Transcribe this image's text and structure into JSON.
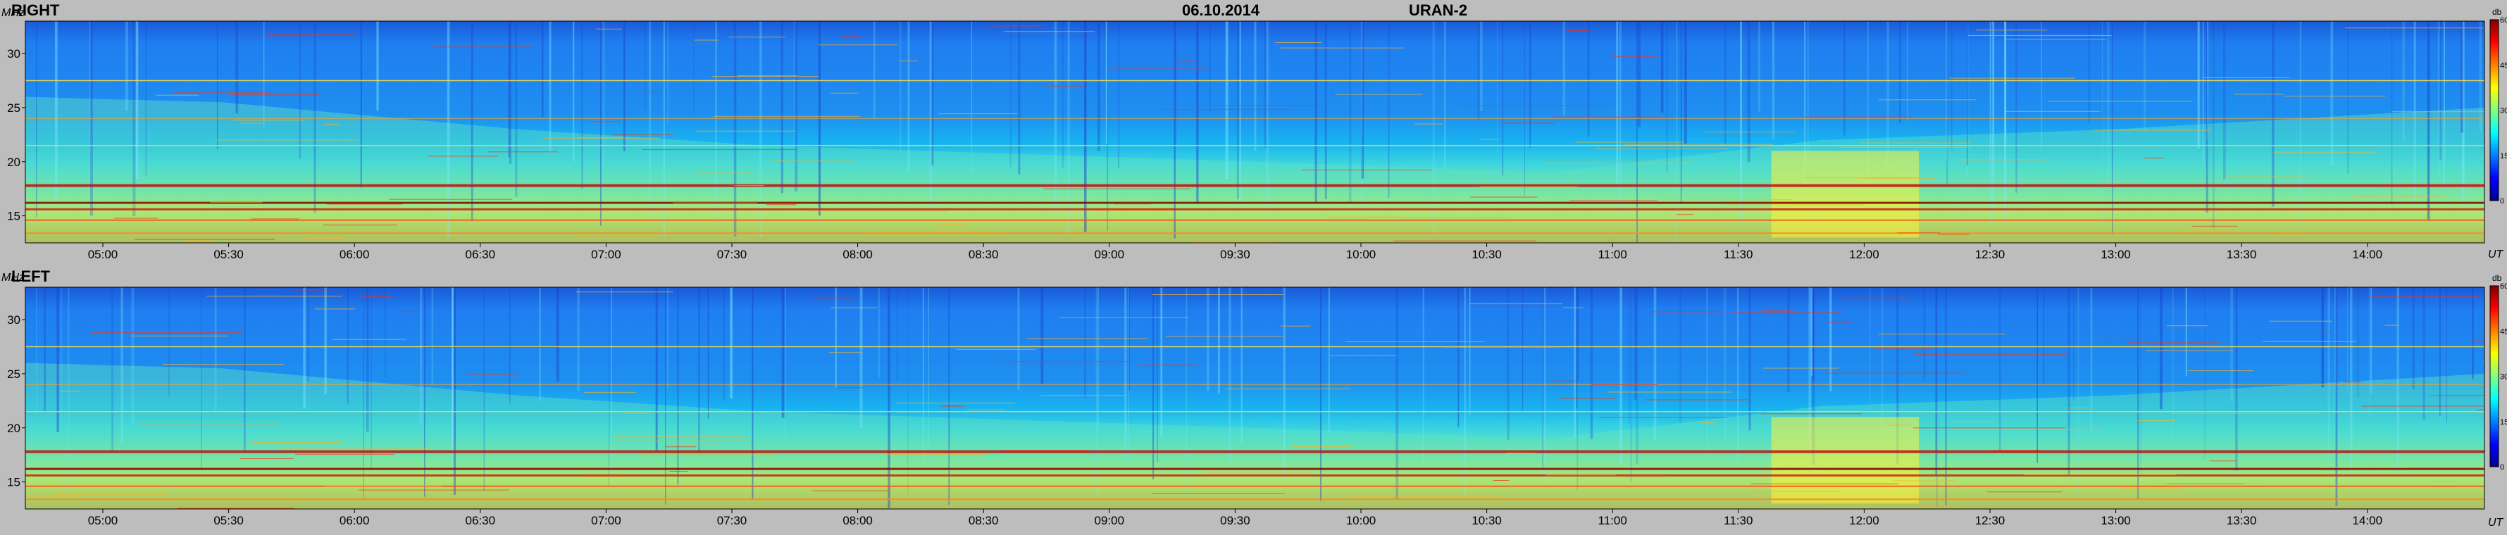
{
  "header": {
    "date": "06.10.2014",
    "instrument": "URAN-2"
  },
  "units": {
    "frequency": "MHz",
    "time": "UT",
    "colorbar": "db"
  },
  "colors": {
    "scale": [
      "#00008f",
      "#0000ff",
      "#0080ff",
      "#00ffff",
      "#80ff80",
      "#ffff00",
      "#ff8000",
      "#ff0000",
      "#800000"
    ],
    "background": "#bdbdbd"
  },
  "chart_data": [
    {
      "type": "heatmap",
      "title": "RIGHT",
      "xlabel": "UT",
      "ylabel": "MHz",
      "x_ticks": [
        "05:00",
        "05:30",
        "06:00",
        "06:30",
        "07:00",
        "07:30",
        "08:00",
        "08:30",
        "09:00",
        "09:30",
        "10:00",
        "10:30",
        "11:00",
        "11:30",
        "12:00",
        "12:30",
        "13:00",
        "13:30",
        "14:00"
      ],
      "y_ticks": [
        15,
        20,
        25,
        30
      ],
      "ylim": [
        12.5,
        33
      ],
      "colorbar_ticks": [
        0,
        15,
        30,
        45,
        60
      ],
      "colorbar_range": [
        0,
        60
      ]
    },
    {
      "type": "heatmap",
      "title": "LEFT",
      "xlabel": "UT",
      "ylabel": "MHz",
      "x_ticks": [
        "05:00",
        "05:30",
        "06:00",
        "06:30",
        "07:00",
        "07:30",
        "08:00",
        "08:30",
        "09:00",
        "09:30",
        "10:00",
        "10:30",
        "11:00",
        "11:30",
        "12:00",
        "12:30",
        "13:00",
        "13:30",
        "14:00"
      ],
      "y_ticks": [
        15,
        20,
        25,
        30
      ],
      "ylim": [
        12.5,
        33
      ],
      "colorbar_ticks": [
        0,
        15,
        30,
        45,
        60
      ],
      "colorbar_range": [
        0,
        60
      ]
    }
  ]
}
